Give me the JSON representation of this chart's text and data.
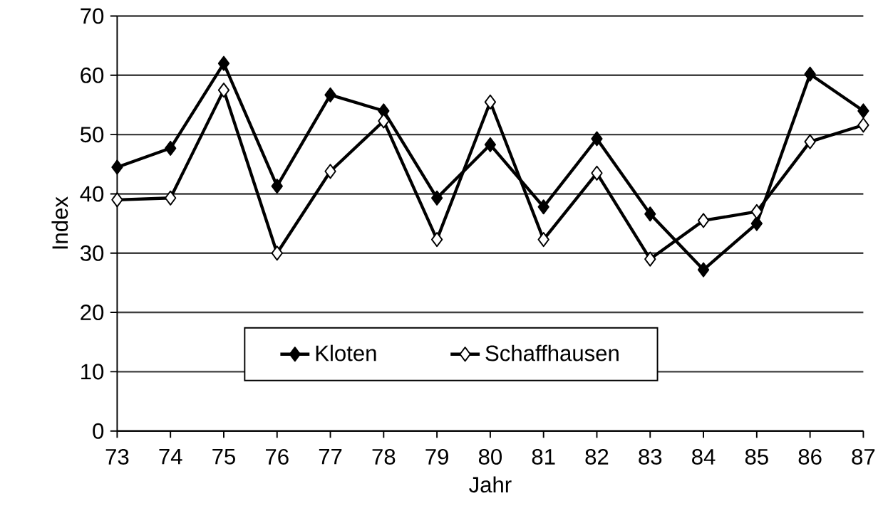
{
  "chart_data": {
    "type": "line",
    "xlabel": "Jahr",
    "ylabel": "Index",
    "x": [
      73,
      74,
      75,
      76,
      77,
      78,
      79,
      80,
      81,
      82,
      83,
      84,
      85,
      86,
      87
    ],
    "series": [
      {
        "name": "Kloten",
        "color": "#000000",
        "values": [
          44.5,
          47.7,
          62,
          41.3,
          56.7,
          54,
          39.3,
          48.3,
          37.8,
          49.3,
          36.6,
          27.2,
          35,
          60.2,
          54
        ]
      },
      {
        "name": "Schaffhausen",
        "color": "#000000",
        "values": [
          39,
          39.3,
          57.5,
          30,
          43.8,
          52.3,
          32.3,
          55.5,
          32.3,
          43.5,
          29,
          35.5,
          37,
          48.8,
          51.6
        ]
      }
    ],
    "xlim": [
      73,
      87
    ],
    "xticks": [
      73,
      74,
      75,
      76,
      77,
      78,
      79,
      80,
      81,
      82,
      83,
      84,
      85,
      86,
      87
    ],
    "ylim": [
      0,
      70
    ],
    "yticks": [
      0,
      10,
      20,
      30,
      40,
      50,
      60,
      70
    ],
    "grid": "y",
    "legend": "bottom",
    "marker": "diamond",
    "line_style": "solid"
  }
}
